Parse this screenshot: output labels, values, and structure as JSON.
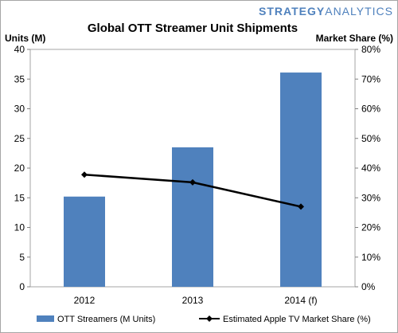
{
  "brand": {
    "text_a": "STRATEGY",
    "text_b": "ANALYTICS",
    "color_a": "#4f81bd",
    "color_b": "#4f81bd"
  },
  "chart_data": {
    "type": "bar",
    "title": "Global OTT Streamer Unit Shipments",
    "ylabel": "Units (M)",
    "y2label": "Market Share (%)",
    "categories": [
      "2012",
      "2013",
      "2014 (f)"
    ],
    "ylim": [
      0,
      40
    ],
    "y2lim": [
      0,
      80
    ],
    "yticks": [
      "0",
      "5",
      "10",
      "15",
      "20",
      "25",
      "30",
      "35",
      "40"
    ],
    "y2ticks": [
      "0%",
      "10%",
      "20%",
      "30%",
      "40%",
      "50%",
      "60%",
      "70%",
      "80%"
    ],
    "series": [
      {
        "name": "OTT Streamers (M Units)",
        "type": "bar",
        "axis": "left",
        "color": "#4f81bd",
        "values": [
          15.2,
          23.5,
          36.1
        ]
      },
      {
        "name": "Estimated Apple TV Market Share (%)",
        "type": "line",
        "axis": "right",
        "color": "#000000",
        "values": [
          37.8,
          35.2,
          27.0
        ]
      }
    ],
    "grid": false,
    "legend": "bottom"
  }
}
